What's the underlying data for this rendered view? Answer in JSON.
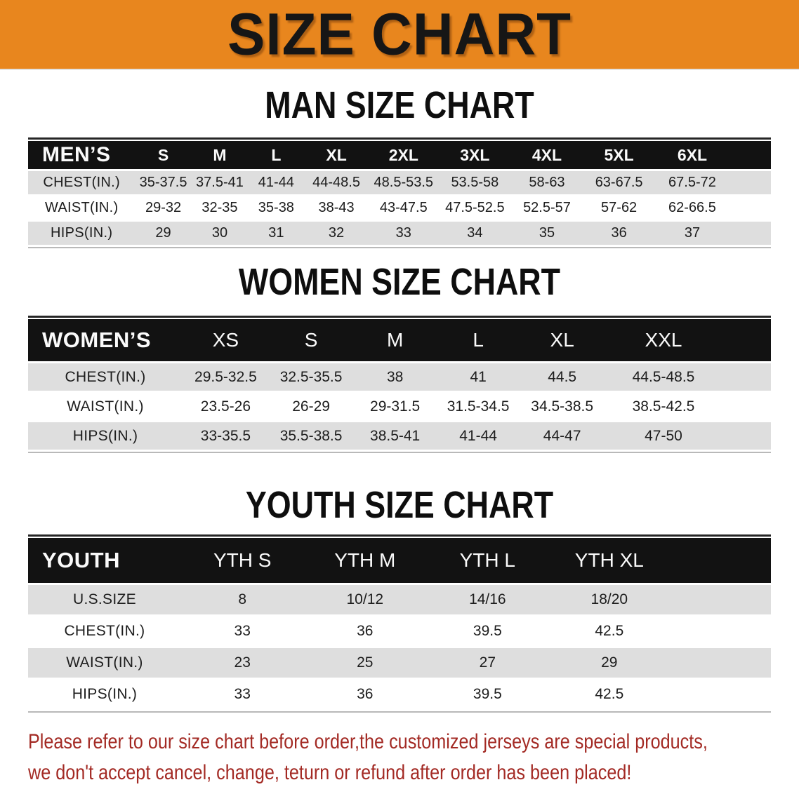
{
  "banner": {
    "title": "SIZE CHART"
  },
  "headings": {
    "men": "MAN SIZE CHART",
    "women": "WOMEN SIZE CHART",
    "youth": "YOUTH SIZE CHART"
  },
  "tables": [
    {
      "corner_label": "MEN’S",
      "columns": [
        "S",
        "M",
        "L",
        "XL",
        "2XL",
        "3XL",
        "4XL",
        "5XL",
        "6XL"
      ],
      "rows": [
        {
          "label": "CHEST(IN.)",
          "values": [
            "35-37.5",
            "37.5-41",
            "41-44",
            "44-48.5",
            "48.5-53.5",
            "53.5-58",
            "58-63",
            "63-67.5",
            "67.5-72"
          ]
        },
        {
          "label": "WAIST(IN.)",
          "values": [
            "29-32",
            "32-35",
            "35-38",
            "38-43",
            "43-47.5",
            "47.5-52.5",
            "52.5-57",
            "57-62",
            "62-66.5"
          ]
        },
        {
          "label": "HIPS(IN.)",
          "values": [
            "29",
            "30",
            "31",
            "32",
            "33",
            "34",
            "35",
            "36",
            "37"
          ]
        }
      ]
    },
    {
      "corner_label": "WOMEN’S",
      "columns": [
        "XS",
        "S",
        "M",
        "L",
        "XL",
        "XXL"
      ],
      "rows": [
        {
          "label": "CHEST(IN.)",
          "values": [
            "29.5-32.5",
            "32.5-35.5",
            "38",
            "41",
            "44.5",
            "44.5-48.5"
          ]
        },
        {
          "label": "WAIST(IN.)",
          "values": [
            "23.5-26",
            "26-29",
            "29-31.5",
            "31.5-34.5",
            "34.5-38.5",
            "38.5-42.5"
          ]
        },
        {
          "label": "HIPS(IN.)",
          "values": [
            "33-35.5",
            "35.5-38.5",
            "38.5-41",
            "41-44",
            "44-47",
            "47-50"
          ]
        }
      ]
    },
    {
      "corner_label": "YOUTH",
      "columns": [
        "YTH S",
        "YTH M",
        "YTH L",
        "YTH XL"
      ],
      "rows": [
        {
          "label": "U.S.SIZE",
          "values": [
            "8",
            "10/12",
            "14/16",
            "18/20"
          ]
        },
        {
          "label": "CHEST(IN.)",
          "values": [
            "33",
            "36",
            "39.5",
            "42.5"
          ]
        },
        {
          "label": "WAIST(IN.)",
          "values": [
            "23",
            "25",
            "27",
            "29"
          ]
        },
        {
          "label": "HIPS(IN.)",
          "values": [
            "33",
            "36",
            "39.5",
            "42.5"
          ]
        }
      ]
    }
  ],
  "footer": {
    "line1": "Please refer to our size chart before order,the customized jerseys are special products,",
    "line2": "we don't accept cancel, change, teturn or refund after order has been placed!"
  },
  "colors": {
    "banner_orange": "#E8861E",
    "banner_text": "#161616",
    "header_bar_black": "#121212",
    "header_bar_text": "#FAFAFA",
    "row_stripe_gray": "#DEDEDE",
    "disclaimer_red": "#A32A24"
  }
}
